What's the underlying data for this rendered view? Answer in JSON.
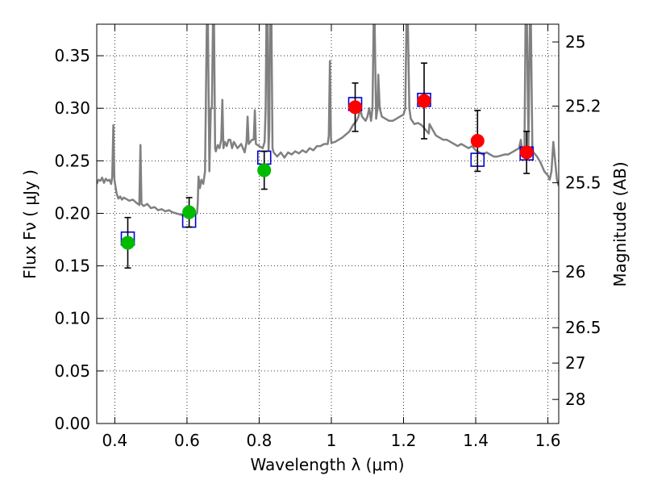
{
  "chart_data": {
    "type": "scatter",
    "xlabel": "Wavelength  λ (μm)",
    "ylabel": "Flux  Fν  ( μJy )",
    "ylabel_right": "Magnitude (AB)",
    "xlim": [
      0.35,
      1.63
    ],
    "ylim": [
      0.0,
      0.38
    ],
    "grid": true,
    "x_ticks": [
      {
        "value": 0.4,
        "label": "0.4"
      },
      {
        "value": 0.6,
        "label": "0.6"
      },
      {
        "value": 0.8,
        "label": "0.8"
      },
      {
        "value": 1.0,
        "label": "1"
      },
      {
        "value": 1.2,
        "label": "1.2"
      },
      {
        "value": 1.4,
        "label": "1.4"
      },
      {
        "value": 1.6,
        "label": "1.6"
      }
    ],
    "y_ticks": [
      {
        "value": 0.0,
        "label": "0.00"
      },
      {
        "value": 0.05,
        "label": "0.05"
      },
      {
        "value": 0.1,
        "label": "0.10"
      },
      {
        "value": 0.15,
        "label": "0.15"
      },
      {
        "value": 0.2,
        "label": "0.20"
      },
      {
        "value": 0.25,
        "label": "0.25"
      },
      {
        "value": 0.3,
        "label": "0.30"
      },
      {
        "value": 0.35,
        "label": "0.35"
      }
    ],
    "y_right_ticks": [
      {
        "label": "25",
        "flux": 0.3631
      },
      {
        "label": "25.2",
        "flux": 0.302
      },
      {
        "label": "25.5",
        "flux": 0.2291
      },
      {
        "label": "26",
        "flux": 0.1445
      },
      {
        "label": "26.5",
        "flux": 0.0912
      },
      {
        "label": "27",
        "flux": 0.0575
      },
      {
        "label": "28",
        "flux": 0.0229
      }
    ],
    "model_spectrum": {
      "color": "#808080",
      "points": [
        [
          0.35,
          0.228
        ],
        [
          0.355,
          0.232
        ],
        [
          0.36,
          0.231
        ],
        [
          0.365,
          0.234
        ],
        [
          0.37,
          0.229
        ],
        [
          0.375,
          0.233
        ],
        [
          0.38,
          0.231
        ],
        [
          0.385,
          0.232
        ],
        [
          0.39,
          0.228
        ],
        [
          0.393,
          0.235
        ],
        [
          0.396,
          0.284
        ],
        [
          0.399,
          0.232
        ],
        [
          0.405,
          0.219
        ],
        [
          0.41,
          0.214
        ],
        [
          0.415,
          0.216
        ],
        [
          0.42,
          0.213
        ],
        [
          0.425,
          0.215
        ],
        [
          0.43,
          0.214
        ],
        [
          0.44,
          0.212
        ],
        [
          0.45,
          0.213
        ],
        [
          0.46,
          0.21
        ],
        [
          0.468,
          0.208
        ],
        [
          0.471,
          0.265
        ],
        [
          0.474,
          0.209
        ],
        [
          0.48,
          0.207
        ],
        [
          0.49,
          0.209
        ],
        [
          0.5,
          0.205
        ],
        [
          0.51,
          0.206
        ],
        [
          0.52,
          0.203
        ],
        [
          0.53,
          0.204
        ],
        [
          0.54,
          0.202
        ],
        [
          0.55,
          0.203
        ],
        [
          0.56,
          0.201
        ],
        [
          0.57,
          0.2
        ],
        [
          0.58,
          0.199
        ],
        [
          0.59,
          0.198
        ],
        [
          0.6,
          0.199
        ],
        [
          0.61,
          0.197
        ],
        [
          0.62,
          0.199
        ],
        [
          0.628,
          0.2
        ],
        [
          0.63,
          0.21
        ],
        [
          0.632,
          0.235
        ],
        [
          0.636,
          0.224
        ],
        [
          0.64,
          0.232
        ],
        [
          0.645,
          0.228
        ],
        [
          0.65,
          0.24
        ],
        [
          0.655,
          0.38
        ],
        [
          0.658,
          0.38
        ],
        [
          0.662,
          0.24
        ],
        [
          0.666,
          0.3
        ],
        [
          0.669,
          0.3
        ],
        [
          0.672,
          0.38
        ],
        [
          0.675,
          0.38
        ],
        [
          0.678,
          0.262
        ],
        [
          0.68,
          0.259
        ],
        [
          0.685,
          0.265
        ],
        [
          0.69,
          0.262
        ],
        [
          0.695,
          0.27
        ],
        [
          0.698,
          0.308
        ],
        [
          0.701,
          0.262
        ],
        [
          0.705,
          0.268
        ],
        [
          0.71,
          0.264
        ],
        [
          0.715,
          0.27
        ],
        [
          0.72,
          0.27
        ],
        [
          0.725,
          0.262
        ],
        [
          0.73,
          0.268
        ],
        [
          0.74,
          0.262
        ],
        [
          0.75,
          0.266
        ],
        [
          0.76,
          0.258
        ],
        [
          0.765,
          0.268
        ],
        [
          0.768,
          0.292
        ],
        [
          0.771,
          0.266
        ],
        [
          0.78,
          0.27
        ],
        [
          0.785,
          0.27
        ],
        [
          0.788,
          0.298
        ],
        [
          0.791,
          0.266
        ],
        [
          0.8,
          0.264
        ],
        [
          0.81,
          0.262
        ],
        [
          0.815,
          0.268
        ],
        [
          0.818,
          0.3
        ],
        [
          0.82,
          0.38
        ],
        [
          0.823,
          0.38
        ],
        [
          0.826,
          0.26
        ],
        [
          0.828,
          0.28
        ],
        [
          0.83,
          0.38
        ],
        [
          0.834,
          0.38
        ],
        [
          0.837,
          0.262
        ],
        [
          0.84,
          0.258
        ],
        [
          0.85,
          0.254
        ],
        [
          0.86,
          0.258
        ],
        [
          0.87,
          0.253
        ],
        [
          0.88,
          0.258
        ],
        [
          0.89,
          0.256
        ],
        [
          0.9,
          0.259
        ],
        [
          0.91,
          0.257
        ],
        [
          0.92,
          0.26
        ],
        [
          0.93,
          0.258
        ],
        [
          0.94,
          0.262
        ],
        [
          0.95,
          0.26
        ],
        [
          0.96,
          0.264
        ],
        [
          0.97,
          0.264
        ],
        [
          0.98,
          0.266
        ],
        [
          0.99,
          0.266
        ],
        [
          0.993,
          0.274
        ],
        [
          0.996,
          0.345
        ],
        [
          0.999,
          0.272
        ],
        [
          1.0,
          0.267
        ],
        [
          1.01,
          0.268
        ],
        [
          1.02,
          0.27
        ],
        [
          1.03,
          0.272
        ],
        [
          1.04,
          0.275
        ],
        [
          1.05,
          0.278
        ],
        [
          1.06,
          0.284
        ],
        [
          1.07,
          0.288
        ],
        [
          1.075,
          0.292
        ],
        [
          1.08,
          0.3
        ],
        [
          1.085,
          0.292
        ],
        [
          1.09,
          0.29
        ],
        [
          1.095,
          0.288
        ],
        [
          1.1,
          0.292
        ],
        [
          1.105,
          0.3
        ],
        [
          1.11,
          0.288
        ],
        [
          1.114,
          0.3
        ],
        [
          1.117,
          0.38
        ],
        [
          1.12,
          0.38
        ],
        [
          1.124,
          0.29
        ],
        [
          1.128,
          0.3
        ],
        [
          1.13,
          0.332
        ],
        [
          1.134,
          0.3
        ],
        [
          1.14,
          0.292
        ],
        [
          1.15,
          0.29
        ],
        [
          1.16,
          0.288
        ],
        [
          1.17,
          0.288
        ],
        [
          1.18,
          0.29
        ],
        [
          1.19,
          0.292
        ],
        [
          1.2,
          0.294
        ],
        [
          1.205,
          0.3
        ],
        [
          1.208,
          0.38
        ],
        [
          1.212,
          0.38
        ],
        [
          1.216,
          0.3
        ],
        [
          1.22,
          0.29
        ],
        [
          1.23,
          0.285
        ],
        [
          1.24,
          0.286
        ],
        [
          1.25,
          0.284
        ],
        [
          1.26,
          0.28
        ],
        [
          1.27,
          0.276
        ],
        [
          1.272,
          0.285
        ],
        [
          1.28,
          0.28
        ],
        [
          1.29,
          0.274
        ],
        [
          1.3,
          0.272
        ],
        [
          1.31,
          0.27
        ],
        [
          1.32,
          0.27
        ],
        [
          1.33,
          0.268
        ],
        [
          1.34,
          0.266
        ],
        [
          1.35,
          0.264
        ],
        [
          1.36,
          0.266
        ],
        [
          1.37,
          0.264
        ],
        [
          1.38,
          0.262
        ],
        [
          1.39,
          0.264
        ],
        [
          1.4,
          0.26
        ],
        [
          1.41,
          0.258
        ],
        [
          1.42,
          0.256
        ],
        [
          1.43,
          0.258
        ],
        [
          1.44,
          0.256
        ],
        [
          1.45,
          0.254
        ],
        [
          1.46,
          0.254
        ],
        [
          1.47,
          0.255
        ],
        [
          1.48,
          0.256
        ],
        [
          1.49,
          0.256
        ],
        [
          1.5,
          0.258
        ],
        [
          1.51,
          0.26
        ],
        [
          1.52,
          0.262
        ],
        [
          1.525,
          0.27
        ],
        [
          1.53,
          0.255
        ],
        [
          1.535,
          0.26
        ],
        [
          1.538,
          0.38
        ],
        [
          1.542,
          0.38
        ],
        [
          1.546,
          0.262
        ],
        [
          1.55,
          0.38
        ],
        [
          1.553,
          0.38
        ],
        [
          1.557,
          0.262
        ],
        [
          1.56,
          0.258
        ],
        [
          1.57,
          0.254
        ],
        [
          1.58,
          0.248
        ],
        [
          1.59,
          0.24
        ],
        [
          1.6,
          0.236
        ],
        [
          1.605,
          0.232
        ],
        [
          1.61,
          0.24
        ],
        [
          1.615,
          0.268
        ],
        [
          1.62,
          0.25
        ],
        [
          1.625,
          0.232
        ],
        [
          1.63,
          0.226
        ]
      ]
    },
    "model_photometry": {
      "marker": "open-square",
      "color": "#0000cc",
      "points": [
        {
          "x": 0.436,
          "y": 0.176
        },
        {
          "x": 0.606,
          "y": 0.193
        },
        {
          "x": 0.814,
          "y": 0.253
        },
        {
          "x": 1.066,
          "y": 0.304
        },
        {
          "x": 1.257,
          "y": 0.308
        },
        {
          "x": 1.405,
          "y": 0.251
        },
        {
          "x": 1.541,
          "y": 0.257
        }
      ]
    },
    "observed_optical": {
      "marker": "filled-circle",
      "color": "#00bb00",
      "points": [
        {
          "x": 0.436,
          "y": 0.172,
          "err": 0.024
        },
        {
          "x": 0.606,
          "y": 0.201,
          "err": 0.014
        },
        {
          "x": 0.814,
          "y": 0.241,
          "err": 0.018
        }
      ]
    },
    "observed_nir": {
      "marker": "filled-circle",
      "color": "#ff0000",
      "points": [
        {
          "x": 1.066,
          "y": 0.301,
          "err": 0.023
        },
        {
          "x": 1.257,
          "y": 0.307,
          "err": 0.036
        },
        {
          "x": 1.405,
          "y": 0.269,
          "err": 0.029
        },
        {
          "x": 1.541,
          "y": 0.258,
          "err": 0.02
        }
      ]
    }
  }
}
